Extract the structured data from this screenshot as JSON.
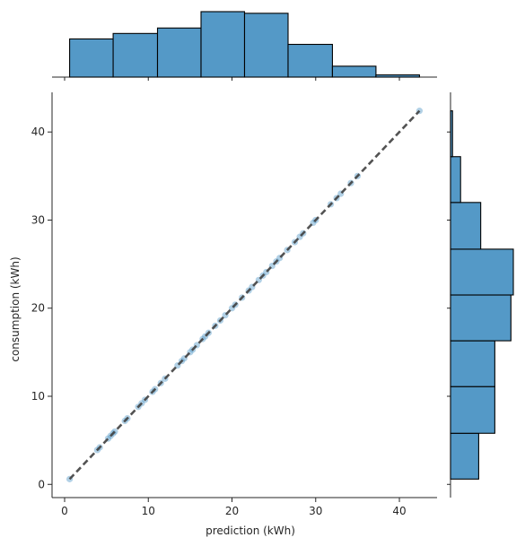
{
  "chart_data": {
    "type": "scatter",
    "kind": "joint-plot",
    "title": "",
    "xlabel": "prediction (kWh)",
    "ylabel": "consumption (kWh)",
    "xlim": [
      -1.5,
      44.5
    ],
    "ylim": [
      -1.5,
      44.5
    ],
    "x_ticks": [
      0,
      10,
      20,
      30,
      40
    ],
    "y_ticks": [
      0,
      10,
      20,
      30,
      40
    ],
    "grid": false,
    "colors": {
      "bar_fill": "#5499c7",
      "bar_edge": "#000000",
      "point": "#5499c7",
      "fit_line": "#404040",
      "axis": "#262626"
    },
    "scatter": {
      "x": [
        0.6,
        3.9,
        4.2,
        5.5,
        5.8,
        6.0,
        5.2,
        7.2,
        7.5,
        8.8,
        9.2,
        9.6,
        10.5,
        10.8,
        11.5,
        12.0,
        13.5,
        14.0,
        14.3,
        15.0,
        15.3,
        15.8,
        16.5,
        16.8,
        17.2,
        18.0,
        18.6,
        19.2,
        20.0,
        20.4,
        21.2,
        22.0,
        22.4,
        23.2,
        23.7,
        24.1,
        24.8,
        25.3,
        25.7,
        26.6,
        27.5,
        28.1,
        28.5,
        29.7,
        30.0,
        31.8,
        32.5,
        33.0,
        34.2,
        35.0,
        42.4
      ],
      "y": [
        0.6,
        3.9,
        4.2,
        5.5,
        5.8,
        6.0,
        5.2,
        7.2,
        7.5,
        8.8,
        9.2,
        9.6,
        10.5,
        10.8,
        11.5,
        12.0,
        13.5,
        14.0,
        14.3,
        15.0,
        15.3,
        15.8,
        16.5,
        16.8,
        17.2,
        18.0,
        18.6,
        19.2,
        20.0,
        20.4,
        21.2,
        22.0,
        22.4,
        23.2,
        23.7,
        24.1,
        24.8,
        25.3,
        25.7,
        26.6,
        27.5,
        28.1,
        28.5,
        29.7,
        30.0,
        31.8,
        32.5,
        33.0,
        34.2,
        35.0,
        42.4
      ]
    },
    "fit_line": {
      "style": "dashed",
      "x": [
        0.6,
        42.4
      ],
      "y": [
        0.6,
        42.4
      ]
    },
    "marginal_x": {
      "type": "histogram",
      "bin_edges": [
        0.6,
        5.8,
        11.1,
        16.3,
        21.5,
        26.7,
        32.0,
        37.2,
        42.4
      ],
      "counts": [
        7,
        8,
        9,
        12,
        11.7,
        6,
        2,
        0.4
      ]
    },
    "marginal_y": {
      "type": "histogram",
      "bin_edges": [
        0.6,
        5.8,
        11.1,
        16.3,
        21.5,
        26.7,
        32.0,
        37.2,
        42.4
      ],
      "counts": [
        7,
        11,
        11,
        15,
        15.6,
        7.5,
        2.5,
        0.5
      ]
    }
  }
}
